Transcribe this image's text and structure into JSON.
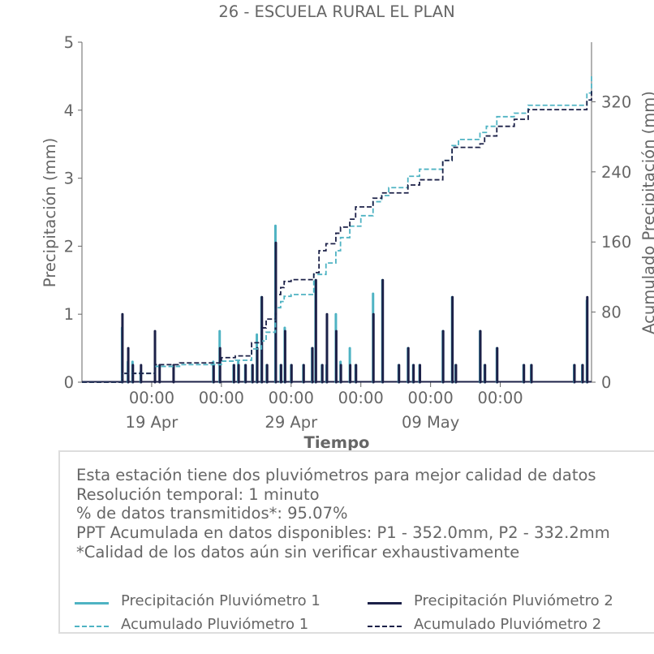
{
  "colors": {
    "p1": "#4fb3c3",
    "p2": "#1c2148",
    "axis": "#666666",
    "text": "#666666"
  },
  "chart_data": {
    "type": "bar+line",
    "title": "26 - ESCUELA RURAL EL PLAN",
    "xlabel": "Tiempo",
    "ylabel_left": "Precipitación (mm)",
    "ylabel_right": "Acumulado Precipitación (mm)",
    "x_range": [
      "2023-04-14T00:00",
      "2023-05-20T13:00"
    ],
    "ylim_left": [
      0,
      5
    ],
    "ylim_right": [
      0,
      388
    ],
    "y_ticks_left": [
      "0",
      "1",
      "2",
      "3",
      "4",
      "5"
    ],
    "y_ticks_right": [
      "0",
      "80",
      "160",
      "240",
      "320"
    ],
    "x_ticks": [
      {
        "t": "2023-04-19T00:00",
        "time": "00:00",
        "date": "19 Apr"
      },
      {
        "t": "2023-04-24T00:00",
        "time": "00:00",
        "date": ""
      },
      {
        "t": "2023-04-29T00:00",
        "time": "00:00",
        "date": "29 Apr"
      },
      {
        "t": "2023-05-04T00:00",
        "time": "00:00",
        "date": ""
      },
      {
        "t": "2023-05-09T00:00",
        "time": "00:00",
        "date": "09 May"
      },
      {
        "t": "2023-05-14T00:00",
        "time": "00:00",
        "date": ""
      }
    ],
    "series": [
      {
        "name": "Precipitación Pluviómetro 1",
        "kind": "bar",
        "points": [
          [
            "2023-04-16T21:00",
            0.8
          ],
          [
            "2023-04-17T07:00",
            0.3
          ],
          [
            "2023-04-17T15:00",
            0.3
          ],
          [
            "2023-04-18T05:00",
            0.15
          ],
          [
            "2023-04-23T10:00",
            0.3
          ],
          [
            "2023-04-23T21:00",
            0.75
          ],
          [
            "2023-04-24T21:00",
            0.25
          ],
          [
            "2023-04-25T05:00",
            0.3
          ],
          [
            "2023-04-25T17:00",
            0.25
          ],
          [
            "2023-04-26T05:00",
            0.25
          ],
          [
            "2023-04-26T13:00",
            0.7
          ],
          [
            "2023-04-26T21:00",
            1.25
          ],
          [
            "2023-04-27T06:00",
            0.25
          ],
          [
            "2023-04-27T21:00",
            2.3
          ],
          [
            "2023-04-28T06:00",
            0.25
          ],
          [
            "2023-04-28T13:00",
            0.8
          ],
          [
            "2023-04-29T00:00",
            0.25
          ],
          [
            "2023-04-29T21:00",
            0.25
          ],
          [
            "2023-04-30T12:00",
            0.5
          ],
          [
            "2023-04-30T18:00",
            1.5
          ],
          [
            "2023-05-01T05:00",
            0.25
          ],
          [
            "2023-05-01T13:00",
            0.25
          ],
          [
            "2023-05-02T05:00",
            1.0
          ],
          [
            "2023-05-02T13:00",
            0.3
          ],
          [
            "2023-05-03T05:00",
            0.5
          ],
          [
            "2023-05-03T15:00",
            0.25
          ],
          [
            "2023-05-04T21:00",
            1.3
          ],
          [
            "2023-05-05T13:00",
            1.5
          ],
          [
            "2023-05-06T17:00",
            0.25
          ],
          [
            "2023-05-07T09:00",
            0.5
          ],
          [
            "2023-05-07T18:00",
            0.25
          ],
          [
            "2023-05-08T05:00",
            0.25
          ],
          [
            "2023-05-09T21:00",
            0.75
          ],
          [
            "2023-05-10T13:00",
            1.25
          ],
          [
            "2023-05-10T19:00",
            0.25
          ],
          [
            "2023-05-12T13:00",
            0.75
          ],
          [
            "2023-05-12T21:00",
            0.25
          ],
          [
            "2023-05-13T18:00",
            0.5
          ],
          [
            "2023-05-15T16:00",
            0.25
          ],
          [
            "2023-05-16T05:00",
            0.25
          ],
          [
            "2023-05-19T07:00",
            0.25
          ],
          [
            "2023-05-19T21:00",
            0.25
          ],
          [
            "2023-05-20T05:00",
            1.2
          ]
        ]
      },
      {
        "name": "Precipitación Pluviómetro 2",
        "kind": "bar",
        "points": [
          [
            "2023-04-16T21:00",
            1.0
          ],
          [
            "2023-04-17T07:00",
            0.5
          ],
          [
            "2023-04-17T15:00",
            0.25
          ],
          [
            "2023-04-18T05:00",
            0.25
          ],
          [
            "2023-04-19T05:00",
            0.75
          ],
          [
            "2023-04-19T13:00",
            0.25
          ],
          [
            "2023-04-20T13:00",
            0.25
          ],
          [
            "2023-04-23T10:00",
            0.25
          ],
          [
            "2023-04-23T21:00",
            0.5
          ],
          [
            "2023-04-24T21:00",
            0.25
          ],
          [
            "2023-04-25T05:00",
            0.25
          ],
          [
            "2023-04-25T17:00",
            0.25
          ],
          [
            "2023-04-26T05:00",
            0.25
          ],
          [
            "2023-04-26T13:00",
            0.5
          ],
          [
            "2023-04-26T21:00",
            1.25
          ],
          [
            "2023-04-27T06:00",
            0.25
          ],
          [
            "2023-04-27T21:00",
            2.05
          ],
          [
            "2023-04-28T06:00",
            0.25
          ],
          [
            "2023-04-28T13:00",
            0.75
          ],
          [
            "2023-04-29T00:00",
            0.25
          ],
          [
            "2023-04-29T21:00",
            0.25
          ],
          [
            "2023-04-30T12:00",
            0.5
          ],
          [
            "2023-04-30T18:00",
            1.5
          ],
          [
            "2023-05-01T05:00",
            0.25
          ],
          [
            "2023-05-01T13:00",
            1.0
          ],
          [
            "2023-05-02T05:00",
            0.75
          ],
          [
            "2023-05-02T13:00",
            0.25
          ],
          [
            "2023-05-03T05:00",
            0.25
          ],
          [
            "2023-05-03T15:00",
            0.25
          ],
          [
            "2023-05-04T21:00",
            1.0
          ],
          [
            "2023-05-05T13:00",
            1.5
          ],
          [
            "2023-05-06T17:00",
            0.25
          ],
          [
            "2023-05-07T09:00",
            0.5
          ],
          [
            "2023-05-07T18:00",
            0.25
          ],
          [
            "2023-05-08T05:00",
            0.25
          ],
          [
            "2023-05-09T21:00",
            0.75
          ],
          [
            "2023-05-10T13:00",
            1.25
          ],
          [
            "2023-05-10T19:00",
            0.25
          ],
          [
            "2023-05-12T13:00",
            0.75
          ],
          [
            "2023-05-12T21:00",
            0.25
          ],
          [
            "2023-05-13T18:00",
            0.5
          ],
          [
            "2023-05-15T16:00",
            0.25
          ],
          [
            "2023-05-16T05:00",
            0.25
          ],
          [
            "2023-05-19T07:00",
            0.25
          ],
          [
            "2023-05-19T21:00",
            0.25
          ],
          [
            "2023-05-20T05:00",
            1.25
          ]
        ]
      },
      {
        "name": "Acumulado Pluviómetro 1",
        "kind": "step",
        "dashed": true,
        "points": [
          [
            "2023-04-14T00:00",
            0
          ],
          [
            "2023-04-16T21:00",
            10
          ],
          [
            "2023-04-19T05:00",
            18
          ],
          [
            "2023-04-21T00:00",
            20
          ],
          [
            "2023-04-24T00:00",
            24
          ],
          [
            "2023-04-25T00:00",
            25
          ],
          [
            "2023-04-26T04:00",
            38
          ],
          [
            "2023-04-26T21:00",
            47
          ],
          [
            "2023-04-27T05:00",
            57
          ],
          [
            "2023-04-27T21:00",
            85
          ],
          [
            "2023-04-28T06:00",
            92
          ],
          [
            "2023-04-28T12:00",
            98
          ],
          [
            "2023-04-29T00:00",
            100
          ],
          [
            "2023-04-30T15:00",
            123
          ],
          [
            "2023-05-01T12:00",
            136
          ],
          [
            "2023-05-02T05:00",
            150
          ],
          [
            "2023-05-02T13:00",
            165
          ],
          [
            "2023-05-03T05:00",
            178
          ],
          [
            "2023-05-04T00:00",
            190
          ],
          [
            "2023-05-04T21:00",
            206
          ],
          [
            "2023-05-05T12:00",
            213
          ],
          [
            "2023-05-06T00:00",
            222
          ],
          [
            "2023-05-07T09:00",
            235
          ],
          [
            "2023-05-08T05:00",
            243
          ],
          [
            "2023-05-09T21:00",
            253
          ],
          [
            "2023-05-10T13:00",
            270
          ],
          [
            "2023-05-11T00:00",
            277
          ],
          [
            "2023-05-12T13:00",
            285
          ],
          [
            "2023-05-13T00:00",
            292
          ],
          [
            "2023-05-13T18:00",
            303
          ],
          [
            "2023-05-15T00:00",
            307
          ],
          [
            "2023-05-16T00:00",
            316
          ],
          [
            "2023-05-20T05:00",
            330
          ],
          [
            "2023-05-20T13:00",
            352
          ]
        ]
      },
      {
        "name": "Acumulado Pluviómetro 2",
        "kind": "step",
        "dashed": true,
        "points": [
          [
            "2023-04-14T00:00",
            0
          ],
          [
            "2023-04-16T21:00",
            10
          ],
          [
            "2023-04-19T05:00",
            20
          ],
          [
            "2023-04-21T00:00",
            22
          ],
          [
            "2023-04-24T00:00",
            28
          ],
          [
            "2023-04-25T00:00",
            30
          ],
          [
            "2023-04-26T04:00",
            45
          ],
          [
            "2023-04-26T21:00",
            62
          ],
          [
            "2023-04-27T05:00",
            72
          ],
          [
            "2023-04-27T21:00",
            100
          ],
          [
            "2023-04-28T06:00",
            108
          ],
          [
            "2023-04-28T12:00",
            115
          ],
          [
            "2023-04-29T00:00",
            117
          ],
          [
            "2023-04-30T15:00",
            125
          ],
          [
            "2023-05-01T00:00",
            150
          ],
          [
            "2023-05-01T12:00",
            158
          ],
          [
            "2023-05-02T05:00",
            170
          ],
          [
            "2023-05-02T13:00",
            177
          ],
          [
            "2023-05-03T05:00",
            186
          ],
          [
            "2023-05-03T15:00",
            200
          ],
          [
            "2023-05-04T21:00",
            210
          ],
          [
            "2023-05-05T12:00",
            216
          ],
          [
            "2023-05-07T09:00",
            225
          ],
          [
            "2023-05-08T05:00",
            231
          ],
          [
            "2023-05-09T21:00",
            253
          ],
          [
            "2023-05-10T13:00",
            268
          ],
          [
            "2023-05-12T13:00",
            272
          ],
          [
            "2023-05-12T21:00",
            281
          ],
          [
            "2023-05-13T18:00",
            292
          ],
          [
            "2023-05-15T00:00",
            300
          ],
          [
            "2023-05-16T00:00",
            311
          ],
          [
            "2023-05-20T05:00",
            322
          ],
          [
            "2023-05-20T13:00",
            332.2
          ]
        ]
      }
    ],
    "legend": [
      {
        "label": "Precipitación Pluviómetro 1",
        "style": "solid",
        "color": "#4fb3c3"
      },
      {
        "label": "Precipitación Pluviómetro 2",
        "style": "solid",
        "color": "#1c2148"
      },
      {
        "label": "Acumulado Pluviómetro 1",
        "style": "dashed",
        "color": "#4fb3c3"
      },
      {
        "label": "Acumulado Pluviómetro 2",
        "style": "dashed",
        "color": "#1c2148"
      }
    ]
  },
  "info": {
    "lines": [
      "Esta estación tiene dos pluviómetros para mejor calidad de datos",
      "Resolución temporal: 1 minuto",
      "% de datos transmitidos*: 95.07%",
      "PPT Acumulada en datos disponibles: P1 - 352.0mm, P2 - 332.2mm",
      "*Calidad de los datos aún sin verificar exhaustivamente"
    ]
  }
}
